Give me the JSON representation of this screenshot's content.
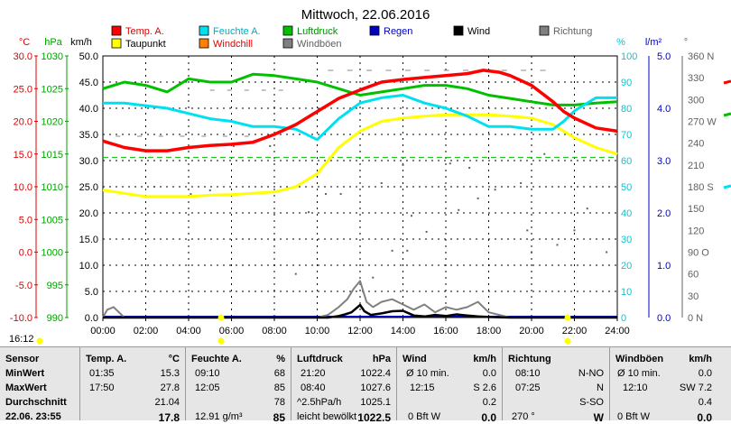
{
  "chart_data": {
    "type": "line",
    "title": "Mittwoch, 22.06.2016",
    "x": {
      "ticks": [
        "00:00",
        "02:00",
        "04:00",
        "06:00",
        "08:00",
        "10:00",
        "12:00",
        "14:00",
        "16:00",
        "18:00",
        "20:00",
        "22:00",
        "24:00"
      ],
      "range": [
        0,
        24
      ]
    },
    "axes": [
      {
        "unit": "°C",
        "range": [
          -10,
          30
        ],
        "ticks": [
          "30.0",
          "25.0",
          "20.0",
          "15.0",
          "10.0",
          "5.0",
          "0.0",
          "-5.0",
          "-10.0"
        ],
        "color": "#e00000"
      },
      {
        "unit": "hPa",
        "range": [
          990,
          1030
        ],
        "ticks": [
          "1030",
          "1025",
          "1020",
          "1015",
          "1010",
          "1005",
          "1000",
          "995",
          "990"
        ],
        "color": "#00a000"
      },
      {
        "unit": "km/h",
        "range": [
          0,
          50
        ],
        "ticks": [
          "50.0",
          "45.0",
          "40.0",
          "35.0",
          "30.0",
          "25.0",
          "20.0",
          "15.0",
          "10.0",
          "5.0",
          "0.0"
        ],
        "color": "#000000"
      },
      {
        "unit": "%",
        "range": [
          0,
          100
        ],
        "ticks": [
          "100",
          "90",
          "80",
          "70",
          "60",
          "50",
          "40",
          "30",
          "20",
          "10",
          "0"
        ],
        "color": "#00c8d8"
      },
      {
        "unit": "l/m²",
        "range": [
          0,
          5
        ],
        "ticks": [
          "5.0",
          "4.0",
          "3.0",
          "2.0",
          "1.0",
          "0.0"
        ],
        "color": "#0000c0"
      },
      {
        "unit": "°",
        "range": [
          0,
          360
        ],
        "ticks": [
          "360 N",
          "330",
          "300",
          "270 W",
          "240",
          "210",
          "180 S",
          "150",
          "120",
          "90 O",
          "60",
          "30",
          "0 N"
        ],
        "color": "#606060"
      }
    ],
    "legend": [
      {
        "name": "Temp. A.",
        "color": "#ff0000"
      },
      {
        "name": "Feuchte A.",
        "color": "#00e0f0"
      },
      {
        "name": "Luftdruck",
        "color": "#00c000"
      },
      {
        "name": "Regen",
        "color": "#0000c0"
      },
      {
        "name": "Wind",
        "color": "#000000"
      },
      {
        "name": "Richtung",
        "color": "#808080"
      },
      {
        "name": "Taupunkt",
        "color": "#ffff00"
      },
      {
        "name": "Windchill",
        "color": "#ff8000"
      },
      {
        "name": "Windböen",
        "color": "#808080"
      }
    ],
    "series": [
      {
        "name": "Temp. A.",
        "axis": "°C",
        "color": "#ff0000",
        "x": [
          0,
          1,
          2,
          3,
          4,
          5,
          6,
          7,
          8,
          9,
          10,
          11,
          12,
          13,
          14,
          15,
          16,
          17,
          17.75,
          18.5,
          19,
          20,
          21,
          21.5,
          22,
          23,
          24
        ],
        "y": [
          17.0,
          16.0,
          15.5,
          15.5,
          16.0,
          16.3,
          16.5,
          16.8,
          18.0,
          19.5,
          21.5,
          23.5,
          24.8,
          26.0,
          26.4,
          26.7,
          27.0,
          27.3,
          27.8,
          27.5,
          27.0,
          25.5,
          23.0,
          21.5,
          20.5,
          19.0,
          18.5
        ]
      },
      {
        "name": "Feuchte A.",
        "axis": "%",
        "color": "#00e0f0",
        "x": [
          0,
          1,
          2,
          3,
          4,
          5,
          6,
          7,
          8,
          9,
          10,
          11,
          12,
          13,
          14,
          15,
          16,
          17,
          18,
          19,
          20,
          21,
          21.5,
          22,
          23,
          24
        ],
        "y": [
          82,
          82,
          81,
          80,
          78,
          76,
          75,
          73,
          73,
          72,
          68,
          76,
          82,
          84,
          85,
          82,
          80,
          77,
          73,
          73,
          72,
          72,
          75,
          79,
          84,
          84
        ]
      },
      {
        "name": "Luftdruck",
        "axis": "hPa",
        "color": "#00c000",
        "x": [
          0,
          1,
          2,
          3,
          4,
          5,
          6,
          7,
          8,
          9,
          10,
          11,
          12,
          13,
          14,
          15,
          16,
          17,
          18,
          19,
          20,
          21,
          22,
          23,
          24
        ],
        "y": [
          1025.0,
          1026.0,
          1025.5,
          1024.5,
          1026.5,
          1026.0,
          1026.0,
          1027.2,
          1027.0,
          1026.5,
          1026.0,
          1025.0,
          1024.0,
          1024.5,
          1025.0,
          1025.5,
          1025.5,
          1025.0,
          1024.0,
          1023.5,
          1023.0,
          1022.5,
          1022.5,
          1022.8,
          1023.0
        ]
      },
      {
        "name": "Taupunkt",
        "axis": "°C",
        "color": "#ffff00",
        "x": [
          0,
          1,
          2,
          3,
          4,
          5,
          6,
          7,
          8,
          9,
          10,
          11,
          12,
          13,
          14,
          15,
          16,
          17,
          18,
          19,
          20,
          21,
          22,
          23,
          24
        ],
        "y": [
          9.5,
          9.0,
          8.5,
          8.5,
          8.5,
          8.7,
          8.8,
          9.0,
          9.2,
          10.0,
          12.0,
          16.0,
          18.5,
          20.0,
          20.5,
          20.8,
          21.0,
          21.0,
          21.0,
          20.8,
          20.5,
          19.5,
          17.5,
          16.0,
          15.0
        ]
      },
      {
        "name": "Wind",
        "axis": "km/h",
        "color": "#000000",
        "x": [
          0,
          10,
          10.5,
          11,
          11.3,
          11.6,
          12,
          12.2,
          12.5,
          13,
          13.5,
          14,
          14.5,
          15,
          15.5,
          16,
          16.5,
          17,
          17.5,
          18,
          19,
          24
        ],
        "y": [
          0,
          0,
          0,
          0.3,
          0.6,
          1.0,
          2.4,
          1.2,
          0.5,
          0.8,
          1.2,
          1.3,
          0.4,
          0.2,
          0.5,
          0.3,
          0.6,
          0.4,
          0.2,
          0.1,
          0,
          0
        ]
      },
      {
        "name": "Windböen",
        "axis": "km/h",
        "color": "#808080",
        "x": [
          0,
          0.2,
          0.5,
          1,
          10,
          10.5,
          11,
          11.4,
          11.7,
          12,
          12.3,
          12.6,
          13,
          13.5,
          14,
          14.5,
          15,
          15.5,
          16,
          16.5,
          17,
          17.5,
          18,
          18.5,
          19,
          24
        ],
        "y": [
          0,
          1.5,
          2.0,
          0,
          0,
          0.5,
          2.0,
          3.5,
          5.5,
          7.0,
          3.0,
          2.0,
          3.0,
          3.5,
          2.5,
          1.5,
          2.5,
          1.0,
          2.0,
          1.5,
          2.0,
          3.0,
          1.0,
          0.5,
          0,
          0
        ]
      }
    ],
    "reference_line": {
      "name": "",
      "axis": "°C",
      "y": 14.5,
      "color": "#00c000",
      "style": "dashed"
    }
  },
  "clock": "16:12",
  "table": {
    "columns": [
      {
        "key": "sensor",
        "header": "Sensor",
        "unit": ""
      },
      {
        "key": "temp",
        "header": "Temp. A.",
        "unit": "°C"
      },
      {
        "key": "hum",
        "header": "Feuchte A.",
        "unit": "%"
      },
      {
        "key": "press",
        "header": "Luftdruck",
        "unit": "hPa"
      },
      {
        "key": "wind",
        "header": "Wind",
        "unit": "km/h"
      },
      {
        "key": "dir",
        "header": "Richtung",
        "unit": ""
      },
      {
        "key": "gust",
        "header": "Windböen",
        "unit": "km/h"
      }
    ],
    "rows": [
      {
        "label": "MinWert",
        "temp": [
          "01:35",
          "15.3"
        ],
        "hum": [
          "09:10",
          "68"
        ],
        "press": [
          "21:20",
          "1022.4"
        ],
        "wind": [
          "Ø 10 min.",
          "0.0"
        ],
        "dir": [
          "08:10",
          "N-NO"
        ],
        "gust": [
          "Ø 10 min.",
          "0.0"
        ]
      },
      {
        "label": "MaxWert",
        "temp": [
          "17:50",
          "27.8"
        ],
        "hum": [
          "12:05",
          "85"
        ],
        "press": [
          "08:40",
          "1027.6"
        ],
        "wind": [
          "12:15",
          "S 2.6"
        ],
        "dir": [
          "07:25",
          "N"
        ],
        "gust": [
          "12:10",
          "SW 7.2"
        ]
      },
      {
        "label": "Durchschnitt",
        "temp": [
          "",
          "21.04"
        ],
        "hum": [
          "",
          "78"
        ],
        "press": [
          "^2.5hPa/h",
          "1025.1"
        ],
        "wind": [
          "",
          "0.2"
        ],
        "dir": [
          "",
          "S-SO"
        ],
        "gust": [
          "",
          "0.4"
        ]
      },
      {
        "label": "22.06. 23:55",
        "temp": [
          "",
          "17.8"
        ],
        "hum": [
          "12.91 g/m³",
          "85"
        ],
        "press": [
          "leicht bewölkt",
          "1022.5"
        ],
        "wind": [
          "0 Bft W",
          "0.0"
        ],
        "dir": [
          "270 °",
          "W"
        ],
        "gust": [
          "0 Bft W",
          "0.0"
        ]
      }
    ]
  }
}
